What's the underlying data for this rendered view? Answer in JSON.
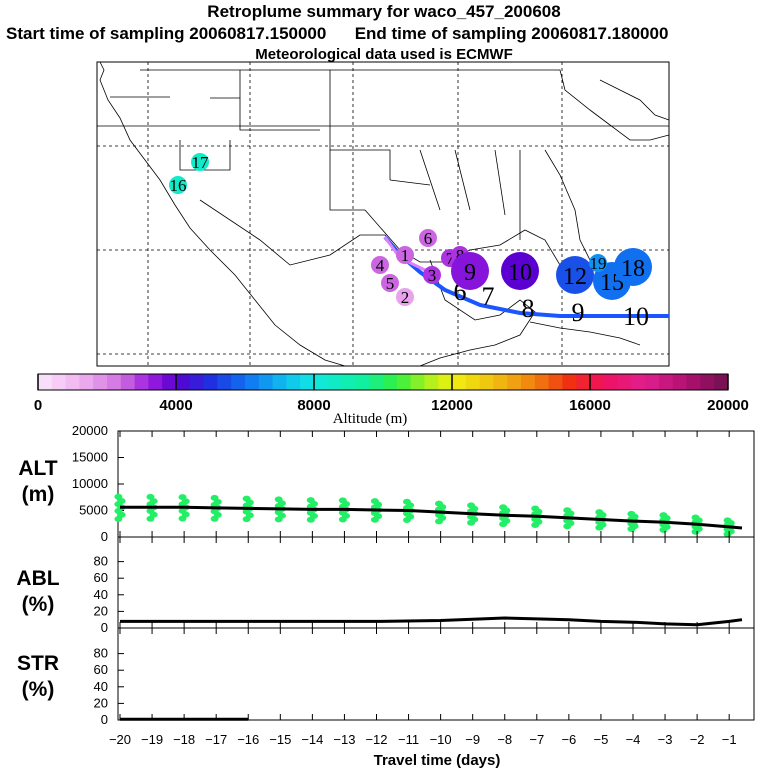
{
  "title": "Retroplume summary for waco_457_200608",
  "subtitle_start": "Start time of sampling 20060817.150000",
  "subtitle_end": "End time of sampling 20060817.180000",
  "subtitle_met": "Meteorological data used is ECMWF",
  "colorbar": {
    "label": "Altitude (m)",
    "ticks": [
      "0",
      "4000",
      "8000",
      "12000",
      "16000",
      "20000"
    ],
    "min": 0,
    "max": 20000
  },
  "map_markers": [
    {
      "label": "1",
      "alt": 2500,
      "size": "s"
    },
    {
      "label": "2",
      "alt": 1500,
      "size": "s"
    },
    {
      "label": "3",
      "alt": 3000,
      "size": "s"
    },
    {
      "label": "4",
      "alt": 2500,
      "size": "s"
    },
    {
      "label": "5",
      "alt": 2500,
      "size": "s"
    },
    {
      "label": "6",
      "alt": 2500,
      "size": "s"
    },
    {
      "label": "7",
      "alt": 3000,
      "size": "s"
    },
    {
      "label": "8",
      "alt": 3000,
      "size": "s"
    },
    {
      "label": "9",
      "alt": 3500,
      "size": "l"
    },
    {
      "label": "10",
      "alt": 4000,
      "size": "l"
    },
    {
      "label": "12",
      "alt": 5500,
      "size": "l"
    },
    {
      "label": "15",
      "alt": 6000,
      "size": "l"
    },
    {
      "label": "18",
      "alt": 6000,
      "size": "l"
    },
    {
      "label": "19",
      "alt": 6500,
      "size": "s"
    },
    {
      "label": "17",
      "alt": 8500,
      "size": "s"
    },
    {
      "label": "16",
      "alt": 8500,
      "size": "s"
    }
  ],
  "track_labels": [
    "6",
    "7",
    "8",
    "9",
    "10"
  ],
  "chart_data": [
    {
      "type": "line",
      "panel": "ALT",
      "ylabel": "ALT (m)",
      "ylim": [
        0,
        20000
      ],
      "yticks": [
        "0",
        "5000",
        "10000",
        "15000",
        "20000"
      ],
      "x": [
        -20,
        -19,
        -18,
        -17,
        -16,
        -15,
        -14,
        -13,
        -12,
        -11,
        -10,
        -9,
        -8,
        -7,
        -6,
        -5,
        -4,
        -3,
        -2,
        -1,
        -0.6
      ],
      "series": [
        {
          "name": "median altitude",
          "values": [
            5600,
            5600,
            5600,
            5500,
            5400,
            5300,
            5200,
            5200,
            5100,
            5000,
            4700,
            4400,
            4100,
            3900,
            3600,
            3300,
            3000,
            2800,
            2400,
            1900,
            1700
          ]
        }
      ],
      "scatter_note": "green dots spread around median"
    },
    {
      "type": "line",
      "panel": "ABL",
      "ylabel": "ABL (%)",
      "ylim": [
        0,
        100
      ],
      "yticks": [
        "0",
        "20",
        "40",
        "60",
        "80"
      ],
      "x": [
        -20,
        -18,
        -16,
        -14,
        -12,
        -10,
        -8,
        -7,
        -6,
        -5,
        -4,
        -3,
        -2,
        -1,
        -0.6
      ],
      "series": [
        {
          "name": "ABL fraction",
          "values": [
            8,
            8,
            8,
            8,
            8,
            9,
            12,
            11,
            10,
            8,
            7,
            5,
            4,
            8,
            10
          ]
        }
      ]
    },
    {
      "type": "line",
      "panel": "STR",
      "ylabel": "STR (%)",
      "ylim": [
        0,
        100
      ],
      "yticks": [
        "0",
        "20",
        "40",
        "60",
        "80"
      ],
      "x": [
        -20,
        -16
      ],
      "series": [
        {
          "name": "stratosphere fraction",
          "values": [
            1,
            1
          ]
        }
      ]
    }
  ],
  "xaxis": {
    "label": "Travel time (days)",
    "ticks": [
      "−20",
      "−19",
      "−18",
      "−17",
      "−16",
      "−15",
      "−14",
      "−13",
      "−12",
      "−11",
      "−10",
      "−9",
      "−8",
      "−7",
      "−6",
      "−5",
      "−4",
      "−3",
      "−2",
      "−1"
    ],
    "min": -20,
    "max": -0.6
  },
  "panel_labels": {
    "alt_top": "ALT",
    "alt_bot": "(m)",
    "abl_top": "ABL",
    "abl_bot": "(%)",
    "str_top": "STR",
    "str_bot": "(%)"
  }
}
